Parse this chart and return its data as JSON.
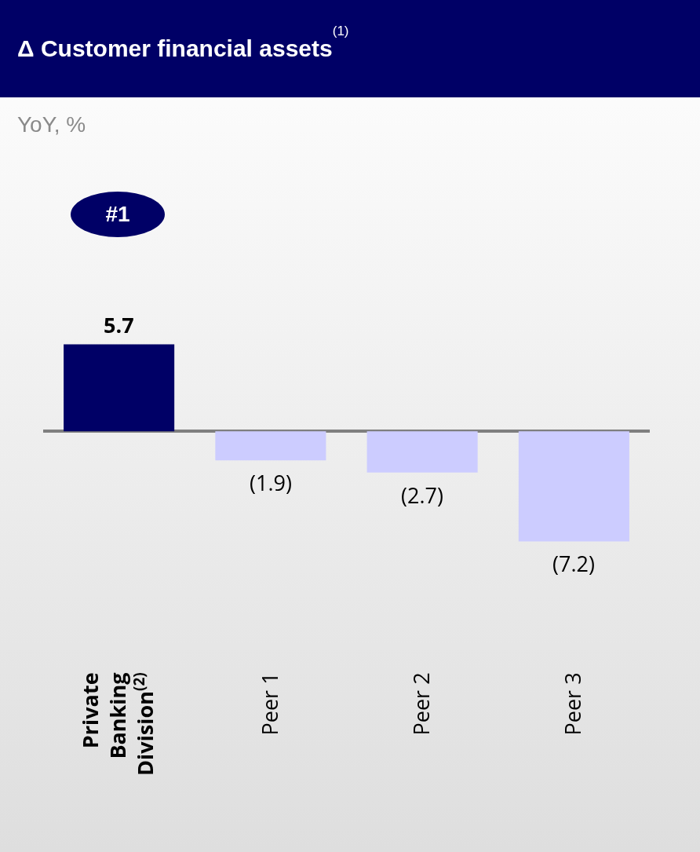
{
  "chart_data": {
    "type": "bar",
    "title": "Δ Customer financial assets$^{(1)}$",
    "subtitle": "YoY, %",
    "annotations": [
      "#1"
    ],
    "categories": [
      "Private Banking Division$^{(2)}$",
      "Peer 1",
      "Peer 2",
      "Peer 3"
    ],
    "values": [
      5.7,
      -1.9,
      -2.7,
      -7.2
    ],
    "colors": [
      "#000066",
      "#ccccff",
      "#ccccff",
      "#ccccff"
    ],
    "value_labels": [
      "5.7",
      "(1.9)",
      "(2.7)",
      "(7.2)"
    ],
    "grid": false,
    "legend": false
  }
}
